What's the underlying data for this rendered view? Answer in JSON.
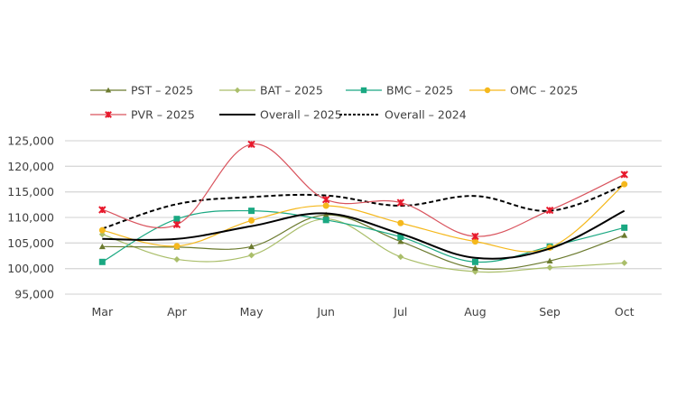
{
  "chart_data": {
    "type": "line",
    "title": "",
    "xlabel": "",
    "ylabel": "",
    "categories": [
      "Mar",
      "Apr",
      "May",
      "Jun",
      "Jul",
      "Aug",
      "Sep",
      "Oct"
    ],
    "ylim": [
      95000,
      125000
    ],
    "yticks": [
      95000,
      100000,
      105000,
      110000,
      115000,
      120000,
      125000
    ],
    "ytick_labels": [
      "95,000",
      "100,000",
      "105,000",
      "110,000",
      "115,000",
      "120,000",
      "125,000"
    ],
    "grid": "horizontal",
    "smooth": true,
    "legend_position": "top",
    "series": [
      {
        "name": "PST – 2025",
        "color": "#6b7a2e",
        "marker": "triangle",
        "dash": false,
        "width": 1.2,
        "values": [
          104300,
          104200,
          104300,
          110500,
          105300,
          100100,
          101500,
          106500
        ]
      },
      {
        "name": "BAT – 2025",
        "color": "#aabe6a",
        "marker": "diamond",
        "dash": false,
        "width": 1.2,
        "values": [
          106700,
          101800,
          102600,
          109700,
          102300,
          99400,
          100200,
          101100
        ]
      },
      {
        "name": "BMC – 2025",
        "color": "#1aa882",
        "marker": "square",
        "dash": false,
        "width": 1.2,
        "values": [
          101300,
          109700,
          111300,
          109500,
          106200,
          101300,
          104300,
          108000
        ]
      },
      {
        "name": "OMC – 2025",
        "color": "#f5b81c",
        "marker": "circle",
        "dash": false,
        "width": 1.2,
        "values": [
          107500,
          104400,
          109400,
          112300,
          108900,
          105300,
          104100,
          116500
        ]
      },
      {
        "name": "PVR – 2025",
        "color": "#e8192c",
        "line_color": "#d9545e",
        "marker": "x",
        "dash": false,
        "width": 1.2,
        "values": [
          111500,
          108600,
          124300,
          113500,
          112900,
          106300,
          111400,
          118400
        ]
      },
      {
        "name": "Overall – 2025",
        "color": "#000000",
        "marker": "none",
        "dash": false,
        "width": 2,
        "values": [
          105800,
          105800,
          108300,
          110800,
          106800,
          102100,
          103900,
          111300
        ]
      },
      {
        "name": "Overall – 2024",
        "color": "#000000",
        "marker": "none",
        "dash": true,
        "width": 2,
        "values": [
          107800,
          112600,
          114000,
          114300,
          112300,
          114200,
          111300,
          116300
        ]
      }
    ]
  }
}
